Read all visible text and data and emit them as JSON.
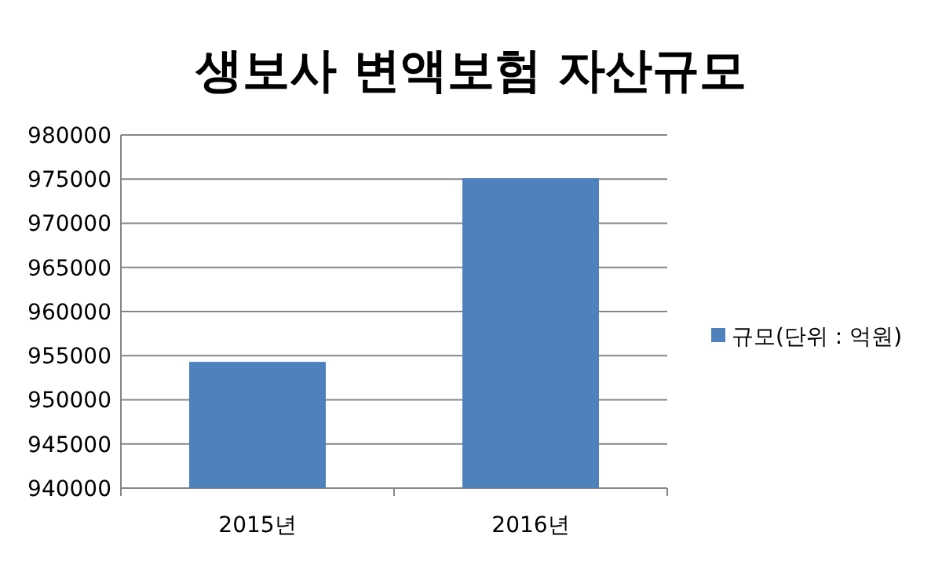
{
  "chart_data": {
    "type": "bar",
    "title": "생보사 변액보험 자산규모",
    "categories": [
      "2015년",
      "2016년"
    ],
    "series": [
      {
        "name": "규모(단위 : 억원)",
        "color": "#4f81bd",
        "values": [
          954300,
          975100
        ]
      }
    ],
    "ylim": [
      940000,
      980000
    ],
    "yticks": [
      940000,
      945000,
      950000,
      955000,
      960000,
      965000,
      970000,
      975000,
      980000
    ],
    "grid": "y",
    "legend": "right"
  }
}
